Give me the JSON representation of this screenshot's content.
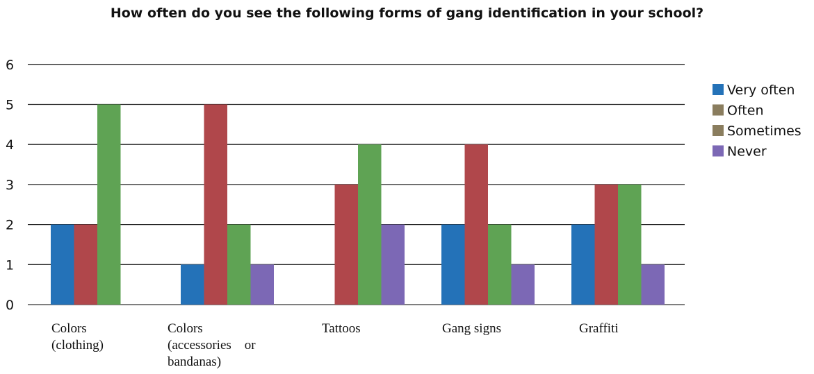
{
  "chart_data": {
    "type": "bar",
    "title": "How often do you see the following forms of gang identification in your school?",
    "categories": [
      [
        "Colors",
        "(clothing)"
      ],
      [
        "Colors",
        "(accessories    or",
        "bandanas)"
      ],
      [
        "Tattoos"
      ],
      [
        "Gang signs"
      ],
      [
        "Graffiti"
      ]
    ],
    "series": [
      {
        "name": "Very often",
        "color": "#2472b8",
        "values": [
          2,
          1,
          0,
          2,
          2
        ]
      },
      {
        "name": "Often",
        "color": "#b0474b",
        "values": [
          2,
          5,
          3,
          4,
          3
        ]
      },
      {
        "name": "Sometimes",
        "color": "#5fa354",
        "values": [
          5,
          2,
          4,
          2,
          3
        ]
      },
      {
        "name": "Never",
        "color": "#7c68b5",
        "values": [
          0,
          1,
          2,
          1,
          1
        ]
      }
    ],
    "legend_colors": [
      "#2472b8",
      "#8a7d5e",
      "#8a7d5e",
      "#7c68b5"
    ],
    "yticks": [
      "0",
      "1",
      "2",
      "3",
      "4",
      "5",
      "6"
    ],
    "ylim": [
      0,
      6
    ],
    "grid": true,
    "legend_position": "right"
  }
}
